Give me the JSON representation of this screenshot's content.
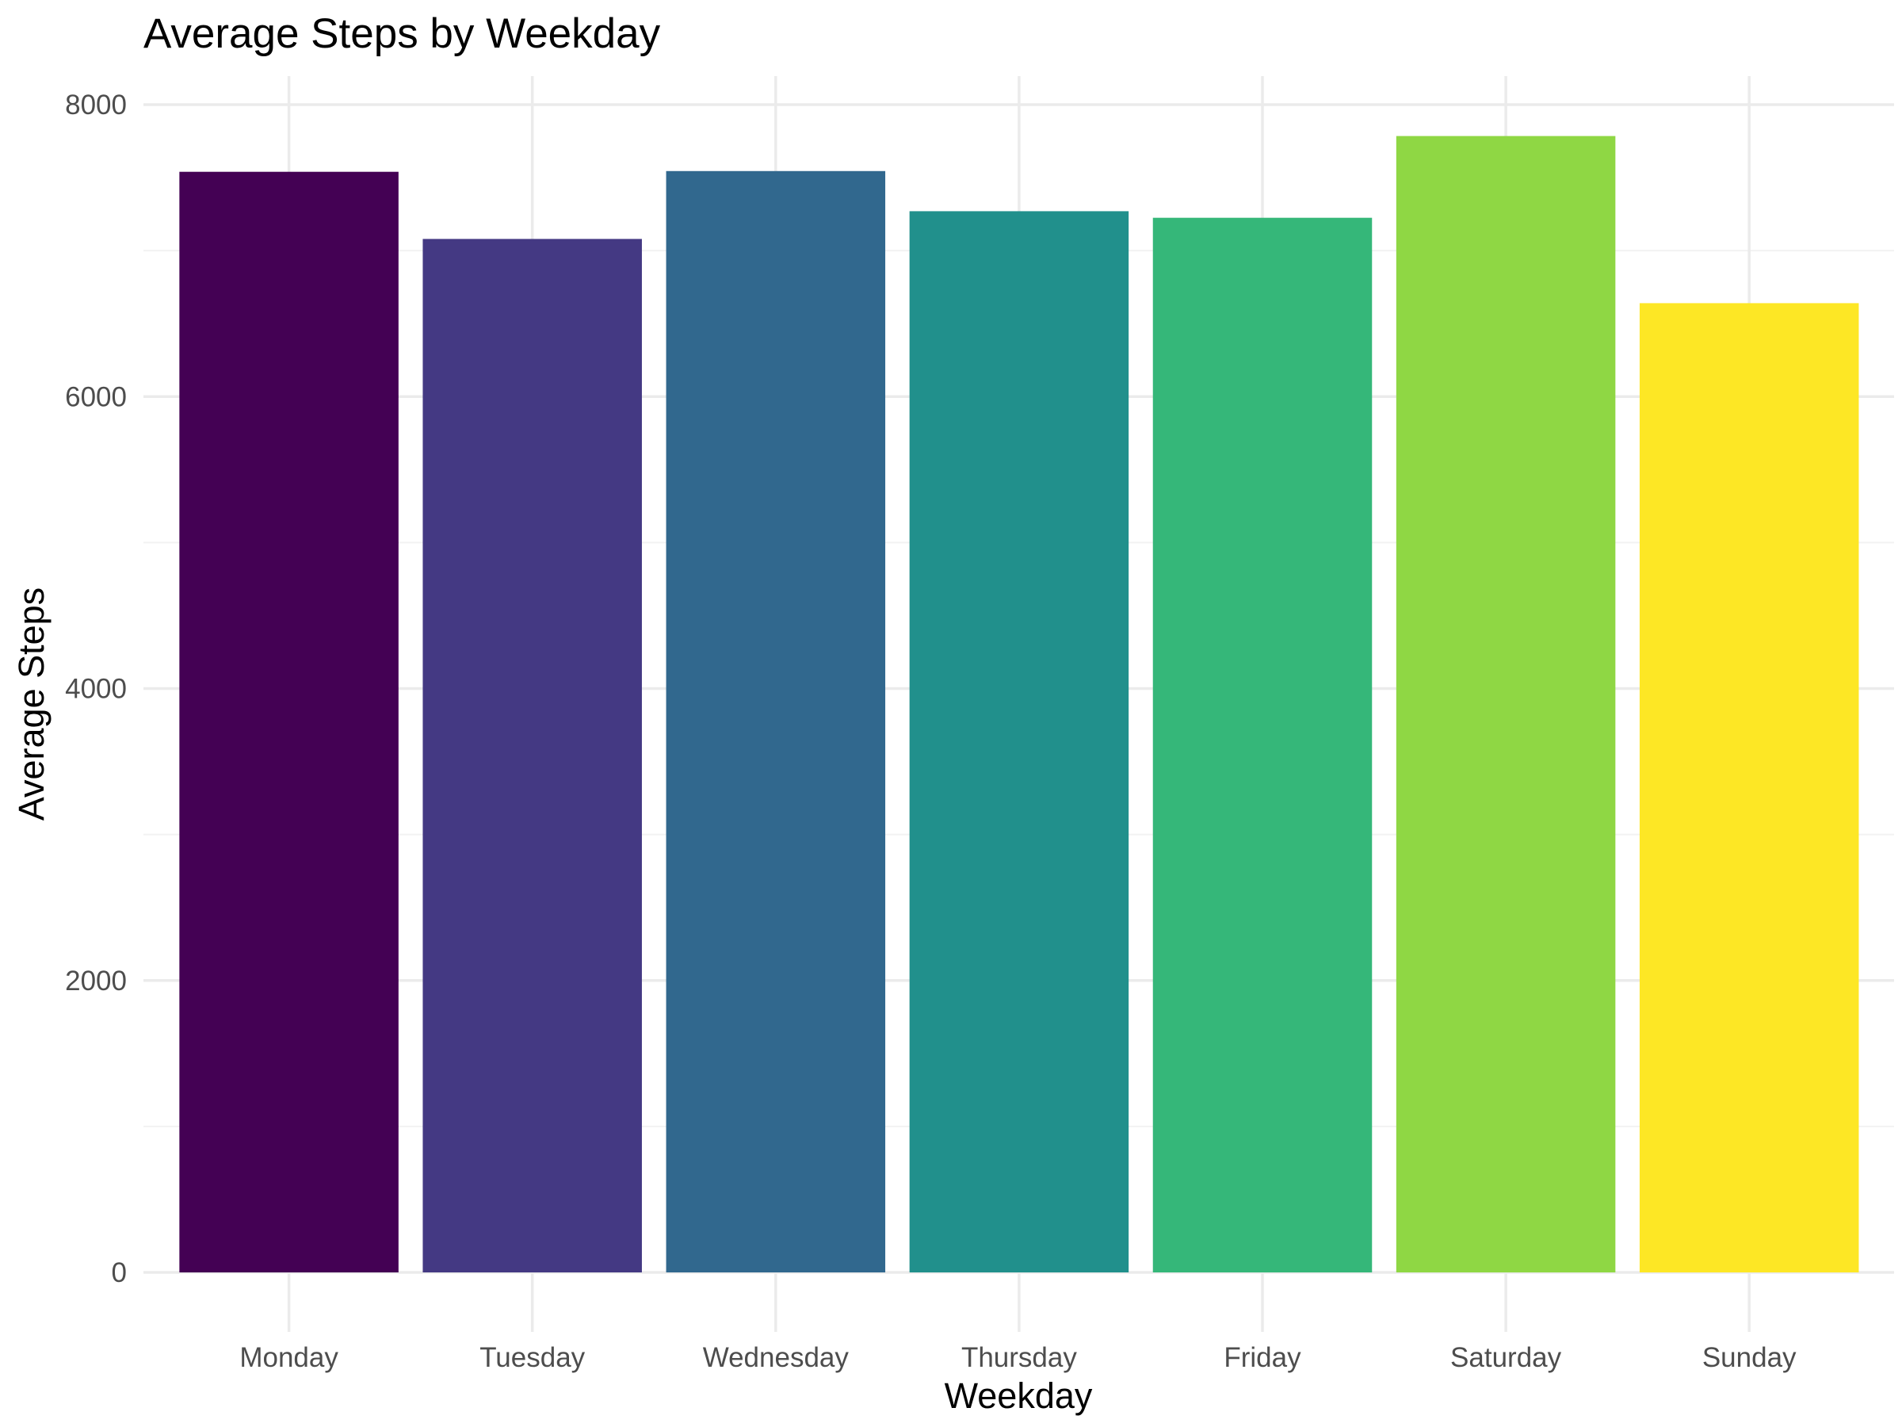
{
  "chart_data": {
    "type": "bar",
    "title": "Average Steps by Weekday",
    "xlabel": "Weekday",
    "ylabel": "Average Steps",
    "categories": [
      "Monday",
      "Tuesday",
      "Wednesday",
      "Thursday",
      "Friday",
      "Saturday",
      "Sunday"
    ],
    "values": [
      7540,
      7080,
      7545,
      7270,
      7225,
      7785,
      6640
    ],
    "colors": [
      "#440154",
      "#443983",
      "#31688E",
      "#21908C",
      "#35B779",
      "#8FD744",
      "#FDE725"
    ],
    "ylim": [
      0,
      8000
    ],
    "yticks": [
      "0",
      "2000",
      "4000",
      "6000",
      "8000"
    ],
    "grid": true,
    "legend": "none"
  }
}
